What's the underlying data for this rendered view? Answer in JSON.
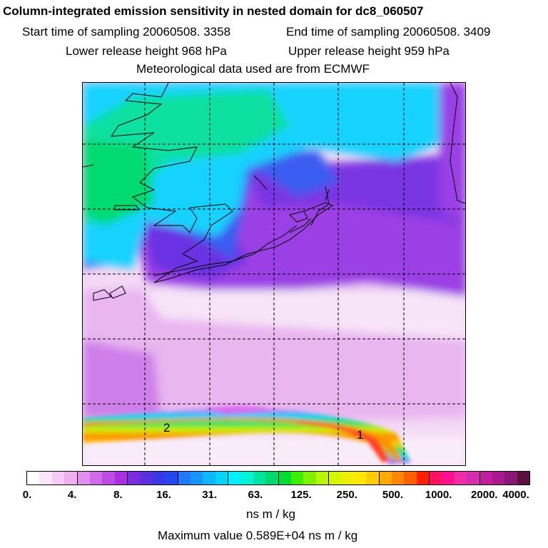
{
  "title": "Column-integrated emission sensitivity in nested domain for dc8_060507",
  "start_label": "Start time of sampling 20060508.  3358",
  "end_label": "End time of sampling 20060508.  3409",
  "lower_label": "Lower release height  968 hPa",
  "upper_label": "Upper release height  959 hPa",
  "met_label": "Meteorological data used are from ECMWF",
  "plume_markers": [
    "2",
    "1"
  ],
  "colorbar": {
    "ticks": [
      "0.",
      "4.",
      "8.",
      "16.",
      "31.",
      "63.",
      "125.",
      "250.",
      "500.",
      "1000.",
      "2000.",
      "4000."
    ],
    "colors": [
      "#ffffff",
      "#fbe5fb",
      "#f6c9f6",
      "#f0aef0",
      "#e18fee",
      "#d06ae8",
      "#bf4ae4",
      "#aa2fe0",
      "#7a2ce0",
      "#5a2fe0",
      "#3a38e6",
      "#2448f0",
      "#1e7bff",
      "#1795ff",
      "#10b5ff",
      "#00d4ff",
      "#00f0ff",
      "#00f5d6",
      "#00e6a2",
      "#00d96c",
      "#00dc33",
      "#3aef00",
      "#80f200",
      "#b8f700",
      "#d6f700",
      "#eef000",
      "#ffe600",
      "#ffcc00",
      "#ffaa00",
      "#ff8800",
      "#ff6000",
      "#ff2000",
      "#ff1060",
      "#ff1090",
      "#f02da8",
      "#d52db0",
      "#c01e9e",
      "#a8188e",
      "#8a1676",
      "#5c1040"
    ],
    "units": "ns m / kg"
  },
  "max_value_label": "Maximum value  0.589E+04 ns m / kg"
}
